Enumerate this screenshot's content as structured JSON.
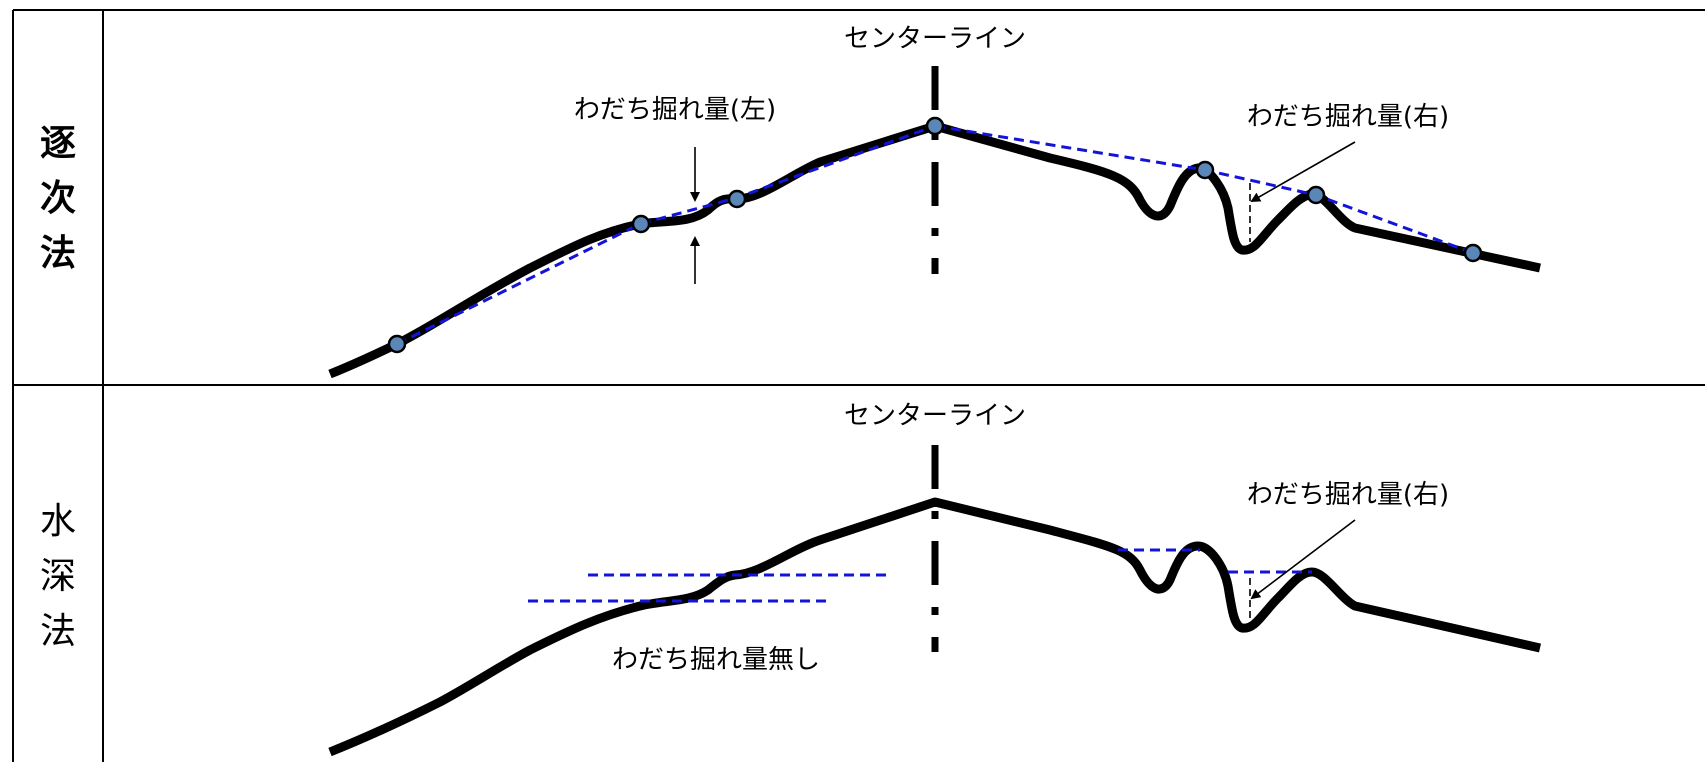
{
  "rows": [
    {
      "label": "逐次法",
      "center_label": "センターライン",
      "left_annotation": "わだち掘れ量(左)",
      "right_annotation": "わだち掘れ量(右)"
    },
    {
      "label": "水深法",
      "center_label": "センターライン",
      "left_annotation": "わだち掘れ量無し",
      "right_annotation": "わだち掘れ量(右)"
    }
  ],
  "colors": {
    "profile": "#000000",
    "dashed_reference": "#1414d8",
    "measurement_point": "#5b86b8"
  }
}
